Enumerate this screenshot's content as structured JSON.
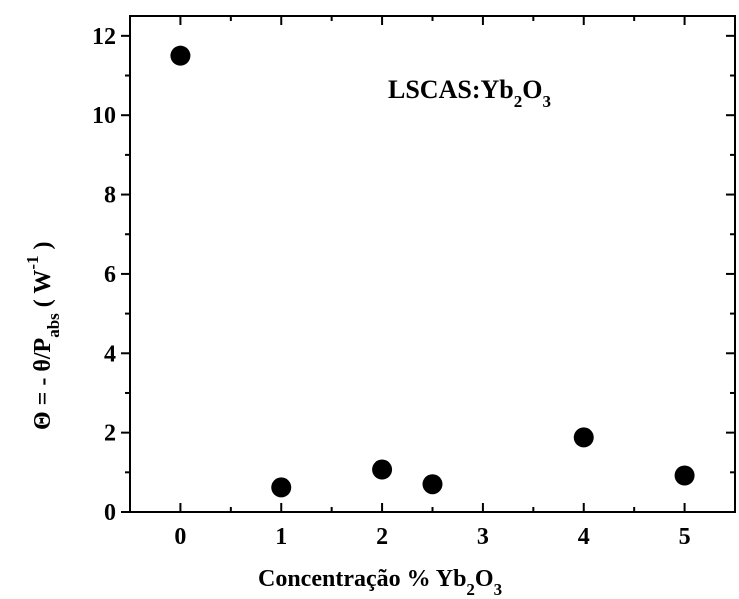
{
  "chart_data": {
    "type": "scatter",
    "x": [
      0,
      1,
      2,
      2.5,
      4,
      5
    ],
    "y": [
      11.5,
      0.62,
      1.07,
      0.7,
      1.88,
      0.92
    ],
    "xlim": [
      -0.5,
      5.5
    ],
    "ylim": [
      0,
      12.5
    ],
    "xticks": [
      0,
      1,
      2,
      3,
      4,
      5
    ],
    "yticks": [
      0,
      2,
      4,
      6,
      8,
      10,
      12
    ],
    "xlabel": {
      "main": "Concentração  % Yb",
      "sub1": "2",
      "mid": "O",
      "sub2": "3"
    },
    "ylabel": {
      "main": "Θ = - θ/P",
      "sub": "abs",
      "tail": " ( W",
      "sup": "-1",
      "close": " )"
    },
    "annotation": {
      "main": "LSCAS:Yb",
      "sub1": "2",
      "mid": "O",
      "sub2": "3"
    },
    "grid": false,
    "marker_color": "#000000"
  }
}
